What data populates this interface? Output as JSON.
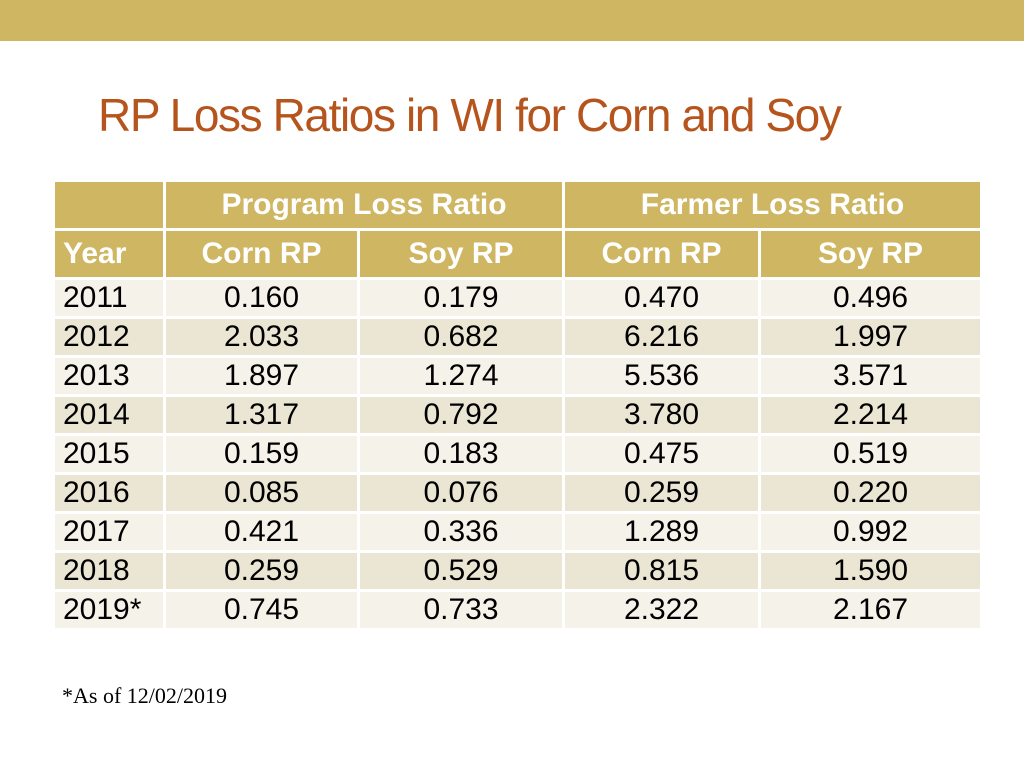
{
  "slide": {
    "title": "RP Loss Ratios in WI for Corn and Soy",
    "footnote": "*As of 12/02/2019"
  },
  "table": {
    "group_headers": [
      "",
      "Program Loss Ratio",
      "Farmer Loss Ratio"
    ],
    "columns": [
      "Year",
      "Corn RP",
      "Soy RP",
      "Corn RP",
      "Soy RP"
    ],
    "rows": [
      [
        "2011",
        "0.160",
        "0.179",
        "0.470",
        "0.496"
      ],
      [
        "2012",
        "2.033",
        "0.682",
        "6.216",
        "1.997"
      ],
      [
        "2013",
        "1.897",
        "1.274",
        "5.536",
        "3.571"
      ],
      [
        "2014",
        "1.317",
        "0.792",
        "3.780",
        "2.214"
      ],
      [
        "2015",
        "0.159",
        "0.183",
        "0.475",
        "0.519"
      ],
      [
        "2016",
        "0.085",
        "0.076",
        "0.259",
        "0.220"
      ],
      [
        "2017",
        "0.421",
        "0.336",
        "1.289",
        "0.992"
      ],
      [
        "2018",
        "0.259",
        "0.529",
        "0.815",
        "1.590"
      ],
      [
        "2019*",
        "0.745",
        "0.733",
        "2.322",
        "2.167"
      ]
    ]
  },
  "colors": {
    "accent": "#cfb662",
    "title": "#b5541c",
    "row_light": "#f5f2ea",
    "row_dark": "#ebe6d3"
  }
}
